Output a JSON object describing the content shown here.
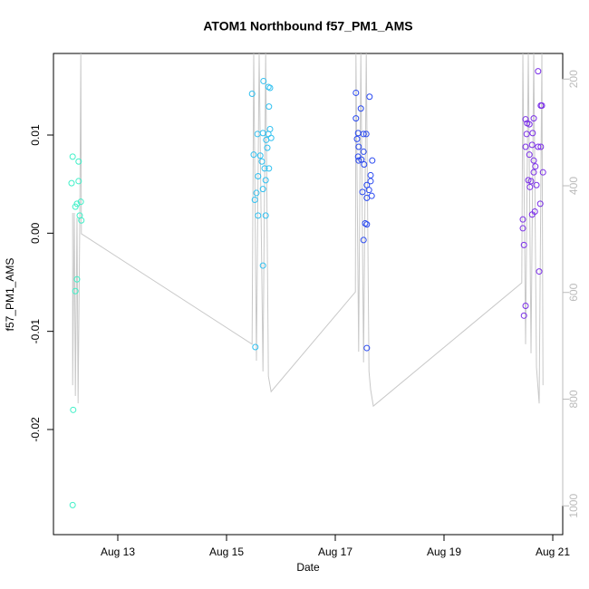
{
  "chart_data": {
    "type": "scatter",
    "title": "ATOM1 Northbound f57_PM1_AMS",
    "x_label": "Date",
    "y_label": "f57_PM1_AMS",
    "xlim": [
      11.817,
      21.183
    ],
    "xticks": [
      {
        "value": 13,
        "label": "Aug 13"
      },
      {
        "value": 15,
        "label": "Aug 15"
      },
      {
        "value": 17,
        "label": "Aug 17"
      },
      {
        "value": 19,
        "label": "Aug 19"
      },
      {
        "value": 21,
        "label": "Aug 21"
      }
    ],
    "ylim": [
      -0.03071,
      0.01831
    ],
    "yticks": [
      -0.02,
      -0.01,
      {
        "value": 0,
        "label": "0.00"
      },
      0.01
    ],
    "y2lim": [
      1054,
      152
    ],
    "y2ticks": [
      200,
      400,
      600,
      800,
      1000
    ],
    "y2_color": "#bbbbbb",
    "series": [
      {
        "color": "#40f0c8",
        "x": [
          12.17,
          12.15,
          12.28,
          12.28,
          12.22,
          12.25,
          12.32,
          12.3,
          12.33,
          12.25,
          12.22,
          12.18,
          12.17
        ],
        "values": [
          0.0078,
          0.0051,
          0.0073,
          0.0053,
          0.0027,
          0.003,
          0.0032,
          0.0018,
          0.0013,
          -0.0047,
          -0.0059,
          -0.018,
          -0.0277
        ]
      },
      {
        "color": "#30c0f0",
        "x": [
          15.47,
          15.5,
          15.57,
          15.68,
          15.77,
          15.8,
          15.78,
          15.8,
          15.77,
          15.82,
          15.73,
          15.67,
          15.62,
          15.65,
          15.7,
          15.78,
          15.58,
          15.67,
          15.55,
          15.52,
          15.58,
          15.72,
          15.67,
          15.53,
          15.75,
          15.72
        ],
        "values": [
          0.0142,
          0.008,
          0.0101,
          0.0155,
          0.0149,
          0.0148,
          0.0129,
          0.0106,
          0.0101,
          0.0097,
          0.0095,
          0.0102,
          0.0079,
          0.0073,
          0.0066,
          0.0066,
          0.0058,
          0.0045,
          0.0041,
          0.0034,
          0.0018,
          0.0018,
          -0.0033,
          -0.0116,
          0.0087,
          0.0054
        ]
      },
      {
        "color": "#2848f0",
        "x": [
          17.38,
          17.38,
          17.47,
          17.63,
          17.42,
          17.52,
          17.4,
          17.57,
          17.43,
          17.52,
          17.42,
          17.43,
          17.53,
          17.68,
          17.65,
          17.58,
          17.65,
          17.5,
          17.62,
          17.58,
          17.67,
          17.55,
          17.58,
          17.52,
          17.58,
          17.48
        ],
        "values": [
          0.0143,
          0.0117,
          0.0127,
          0.0139,
          0.0102,
          0.0101,
          0.0096,
          0.0101,
          0.0088,
          0.0083,
          0.0078,
          0.0074,
          0.007,
          0.0074,
          0.0059,
          0.0049,
          0.0053,
          0.0042,
          0.0044,
          0.0036,
          0.0038,
          0.001,
          0.0009,
          -0.0007,
          -0.0117,
          0.0075
        ]
      },
      {
        "color": "#7a2ee8",
        "x": [
          20.5,
          20.53,
          20.57,
          20.65,
          20.73,
          20.78,
          20.8,
          20.52,
          20.63,
          20.5,
          20.62,
          20.57,
          20.65,
          20.73,
          20.78,
          20.68,
          20.65,
          20.6,
          20.55,
          20.58,
          20.82,
          20.7,
          20.77,
          20.67,
          20.62,
          20.45,
          20.45,
          20.47,
          20.5,
          20.47,
          20.75
        ],
        "values": [
          0.0116,
          0.0112,
          0.0111,
          0.0117,
          0.0165,
          0.013,
          0.013,
          0.0101,
          0.0102,
          0.0088,
          0.009,
          0.008,
          0.0074,
          0.0088,
          0.0088,
          0.0068,
          0.0062,
          0.0053,
          0.0054,
          0.0047,
          0.0062,
          0.0049,
          0.003,
          0.0022,
          0.0019,
          0.0014,
          0.0005,
          -0.0012,
          -0.0074,
          -0.0084,
          -0.0039
        ]
      },
      {
        "type": "line",
        "axis": "y2",
        "color": "#c8c8c8",
        "x": [
          12.17,
          12.17,
          12.2,
          12.22,
          12.25,
          12.27,
          12.3,
          12.32,
          12.33,
          15.47,
          15.5,
          15.55,
          15.6,
          15.67,
          15.72,
          15.77,
          15.82,
          17.37,
          17.38,
          17.43,
          17.47,
          17.52,
          17.57,
          17.62,
          17.65,
          17.7,
          20.43,
          20.45,
          20.5,
          20.55,
          20.6,
          20.65,
          20.7,
          20.75,
          20.8,
          20.82
        ],
        "values": [
          451,
          774,
          451,
          794,
          460,
          808,
          477,
          152,
          490,
          697,
          152,
          728,
          152,
          748,
          152,
          757,
          786,
          599,
          152,
          711,
          152,
          731,
          152,
          748,
          782,
          813,
          582,
          152,
          697,
          152,
          714,
          152,
          740,
          808,
          152,
          774
        ]
      }
    ]
  }
}
